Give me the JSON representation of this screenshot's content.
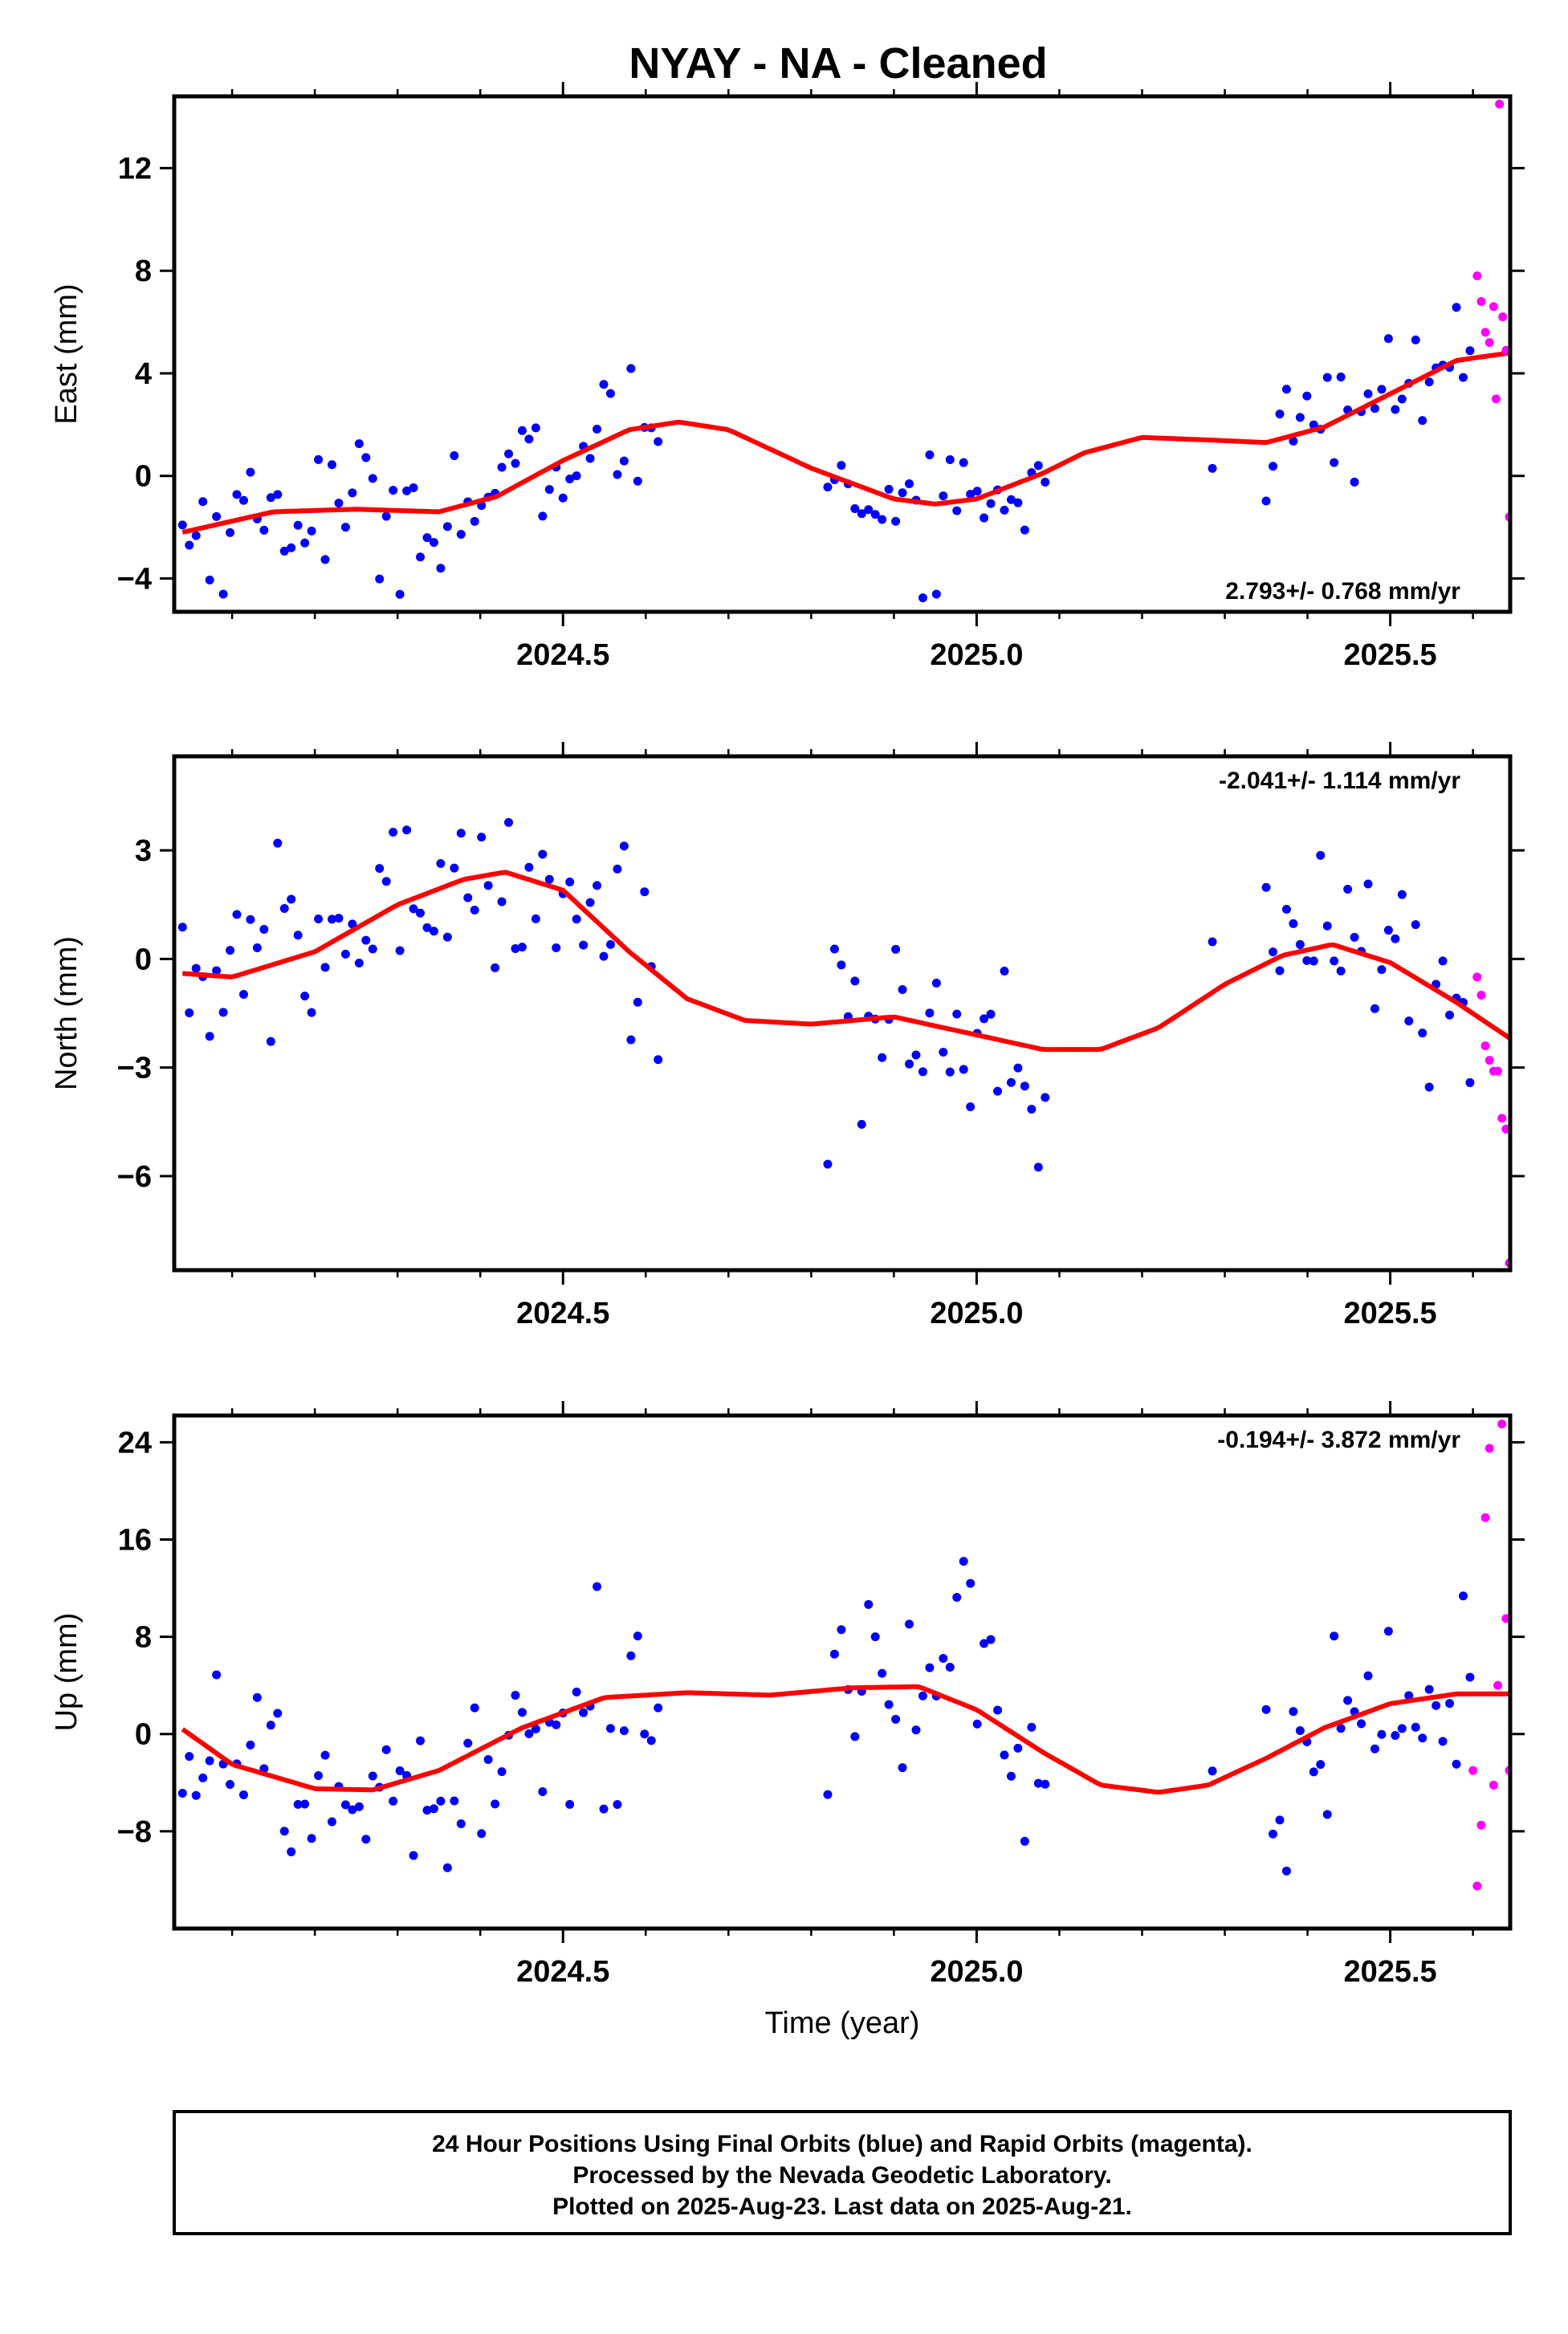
{
  "title": "NYAY  - NA - Cleaned",
  "colors": {
    "final": "#0000ff",
    "rapid": "#ff00ff",
    "fit": "#ff0000",
    "frame": "#000000"
  },
  "chart_data": [
    {
      "type": "scatter",
      "ylabel": "East (mm)",
      "xlabel": "",
      "xlim": [
        2024.03,
        2025.645
      ],
      "ylim": [
        -5.3,
        14.8
      ],
      "xticks": [
        {
          "v": 2024.5,
          "label": "2024.5"
        },
        {
          "v": 2025.0,
          "label": "2025.0"
        },
        {
          "v": 2025.5,
          "label": "2025.5"
        }
      ],
      "xminor": [
        2024.1,
        2024.2,
        2024.3,
        2024.4,
        2024.6,
        2024.7,
        2024.8,
        2024.9,
        2025.1,
        2025.2,
        2025.3,
        2025.4,
        2025.6
      ],
      "yticks": [
        {
          "v": -4,
          "label": "−4"
        },
        {
          "v": 0,
          "label": "0"
        },
        {
          "v": 4,
          "label": "4"
        },
        {
          "v": 8,
          "label": "8"
        },
        {
          "v": 12,
          "label": "12"
        }
      ],
      "rate": "2.793+/- 0.768 mm/yr",
      "rate_pos": "bottom-right",
      "rapid": {
        "x": [
          2025.605,
          2025.61,
          2025.615,
          2025.62,
          2025.625,
          2025.628,
          2025.632,
          2025.636,
          2025.64,
          2025.644
        ],
        "y": [
          7.8,
          6.8,
          5.6,
          5.2,
          6.6,
          3.0,
          14.5,
          6.2,
          4.9,
          -1.6
        ]
      },
      "trend": {
        "x": [
          2024.04,
          2024.15,
          2024.25,
          2024.35,
          2024.42,
          2024.5,
          2024.58,
          2024.64,
          2024.7,
          2024.8,
          2024.9,
          2024.95,
          2025.0,
          2025.08,
          2025.13,
          2025.2,
          2025.28,
          2025.35,
          2025.42,
          2025.5,
          2025.58,
          2025.645
        ],
        "y": [
          -2.2,
          -1.4,
          -1.3,
          -1.4,
          -0.8,
          0.6,
          1.8,
          2.1,
          1.8,
          0.3,
          -0.9,
          -1.1,
          -0.9,
          0.1,
          0.9,
          1.5,
          1.4,
          1.3,
          1.9,
          3.2,
          4.5,
          4.8
        ]
      }
    },
    {
      "type": "scatter",
      "ylabel": "North (mm)",
      "xlabel": "",
      "xlim": [
        2024.03,
        2025.645
      ],
      "ylim": [
        -8.6,
        5.6
      ],
      "xticks": [
        {
          "v": 2024.5,
          "label": "2024.5"
        },
        {
          "v": 2025.0,
          "label": "2025.0"
        },
        {
          "v": 2025.5,
          "label": "2025.5"
        }
      ],
      "xminor": [
        2024.1,
        2024.2,
        2024.3,
        2024.4,
        2024.6,
        2024.7,
        2024.8,
        2024.9,
        2025.1,
        2025.2,
        2025.3,
        2025.4,
        2025.6
      ],
      "yticks": [
        {
          "v": -6,
          "label": "−6"
        },
        {
          "v": -3,
          "label": "−3"
        },
        {
          "v": 0,
          "label": "0"
        },
        {
          "v": 3,
          "label": "3"
        }
      ],
      "rate": "-2.041+/- 1.114 mm/yr",
      "rate_pos": "top-right",
      "rapid": {
        "x": [
          2025.605,
          2025.61,
          2025.615,
          2025.62,
          2025.625,
          2025.63,
          2025.635,
          2025.64,
          2025.644
        ],
        "y": [
          -0.5,
          -1.0,
          -2.4,
          -2.8,
          -3.1,
          -3.1,
          -4.4,
          -4.7,
          -8.4
        ]
      },
      "trend": {
        "x": [
          2024.04,
          2024.1,
          2024.2,
          2024.3,
          2024.38,
          2024.43,
          2024.5,
          2024.58,
          2024.65,
          2024.72,
          2024.8,
          2024.9,
          2025.0,
          2025.08,
          2025.15,
          2025.22,
          2025.3,
          2025.37,
          2025.43,
          2025.5,
          2025.58,
          2025.645
        ],
        "y": [
          -0.4,
          -0.5,
          0.2,
          1.5,
          2.2,
          2.4,
          1.9,
          0.2,
          -1.1,
          -1.7,
          -1.8,
          -1.6,
          -2.1,
          -2.5,
          -2.5,
          -1.9,
          -0.7,
          0.1,
          0.4,
          -0.1,
          -1.2,
          -2.2
        ]
      }
    },
    {
      "type": "scatter",
      "ylabel": "Up (mm)",
      "xlabel": "Time (year)",
      "xlim": [
        2024.03,
        2025.645
      ],
      "ylim": [
        -16,
        26.2
      ],
      "xticks": [
        {
          "v": 2024.5,
          "label": "2024.5"
        },
        {
          "v": 2025.0,
          "label": "2025.0"
        },
        {
          "v": 2025.5,
          "label": "2025.5"
        }
      ],
      "xminor": [
        2024.1,
        2024.2,
        2024.3,
        2024.4,
        2024.6,
        2024.7,
        2024.8,
        2024.9,
        2025.1,
        2025.2,
        2025.3,
        2025.4,
        2025.6
      ],
      "yticks": [
        {
          "v": -8,
          "label": "−8"
        },
        {
          "v": 0,
          "label": "0"
        },
        {
          "v": 8,
          "label": "8"
        },
        {
          "v": 16,
          "label": "16"
        },
        {
          "v": 24,
          "label": "24"
        }
      ],
      "rate": "-0.194+/- 3.872 mm/yr",
      "rate_pos": "top-right",
      "rapid": {
        "x": [
          2025.6,
          2025.605,
          2025.61,
          2025.615,
          2025.62,
          2025.625,
          2025.63,
          2025.635,
          2025.64,
          2025.644
        ],
        "y": [
          -3.0,
          -12.5,
          -7.5,
          17.8,
          23.5,
          -4.2,
          4.0,
          25.5,
          9.5,
          -3.0
        ]
      },
      "trend": {
        "x": [
          2024.04,
          2024.1,
          2024.2,
          2024.27,
          2024.35,
          2024.45,
          2024.55,
          2024.65,
          2024.75,
          2024.85,
          2024.93,
          2025.0,
          2025.08,
          2025.15,
          2025.22,
          2025.28,
          2025.35,
          2025.42,
          2025.5,
          2025.58,
          2025.645
        ],
        "y": [
          0.4,
          -2.5,
          -4.5,
          -4.6,
          -3.0,
          0.5,
          3.0,
          3.4,
          3.2,
          3.8,
          3.9,
          2.0,
          -1.5,
          -4.2,
          -4.8,
          -4.2,
          -2.0,
          0.5,
          2.5,
          3.3,
          3.3
        ]
      }
    }
  ],
  "footer": {
    "line1": "24 Hour Positions Using Final Orbits (blue) and Rapid Orbits (magenta).",
    "line2": "Processed by the Nevada Geodetic Laboratory.",
    "line3": "Plotted on 2025-Aug-23. Last data on 2025-Aug-21."
  }
}
